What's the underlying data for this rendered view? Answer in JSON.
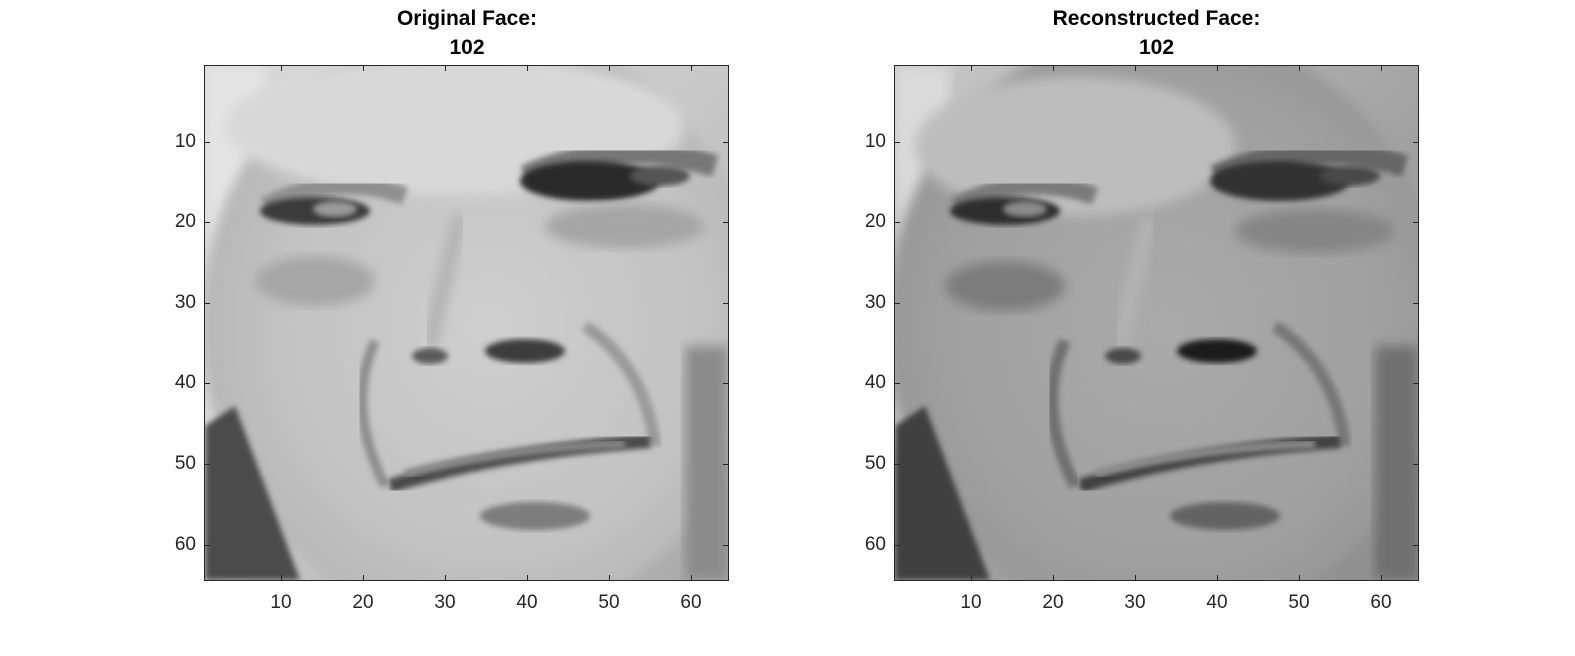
{
  "figure": {
    "panels": [
      {
        "title_line1": "Original Face:",
        "title_line2": "102",
        "image": "grayscale-face-photo-original"
      },
      {
        "title_line1": "Reconstructed Face:",
        "title_line2": "102",
        "image": "grayscale-face-photo-reconstructed"
      }
    ],
    "x_ticks": [
      "10",
      "20",
      "30",
      "40",
      "50",
      "60"
    ],
    "y_ticks": [
      "10",
      "20",
      "30",
      "40",
      "50",
      "60"
    ],
    "axis_range": [
      0.5,
      64.5
    ],
    "colormap": "gray"
  }
}
